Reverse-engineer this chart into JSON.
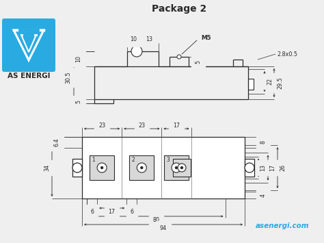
{
  "title": "Package 2",
  "bg_color": "#efefef",
  "line_color": "#2a2a2a",
  "dim_color": "#2a2a2a",
  "text_color": "#2a2a2a",
  "blue_color": "#29ABE2",
  "website": "asenergi.com",
  "company": "AS ENERGI"
}
